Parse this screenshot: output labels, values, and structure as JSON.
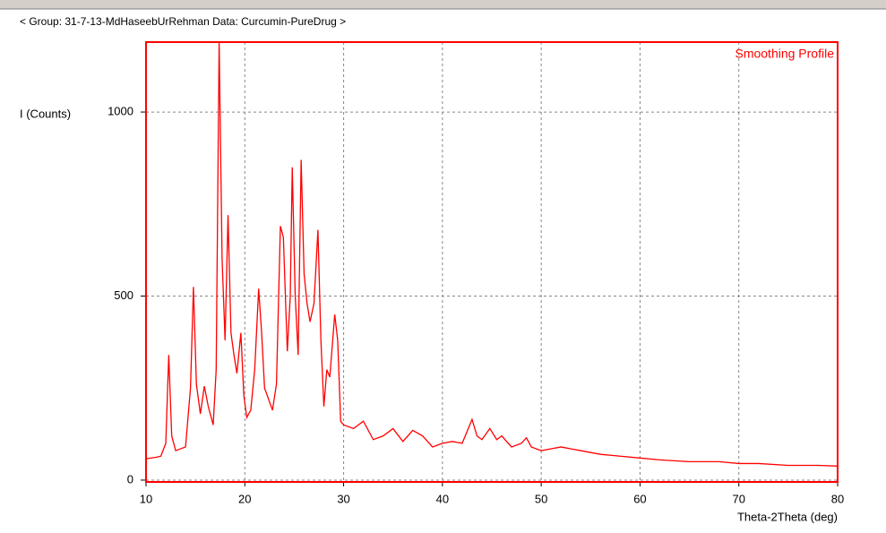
{
  "header": "< Group: 31-7-13-MdHaseebUrRehman   Data: Curcumin-PureDrug >",
  "chart_data": {
    "type": "line",
    "xlabel": "Theta-2Theta (deg)",
    "ylabel": "I (Counts)",
    "series": [
      {
        "name": "Smoothing Profile",
        "color": "#ff0000",
        "x": [
          10,
          11,
          11.5,
          12.0,
          12.3,
          12.6,
          13,
          14,
          14.5,
          14.8,
          15.1,
          15.5,
          15.9,
          16.3,
          16.8,
          17.1,
          17.4,
          17.7,
          18.0,
          18.3,
          18.6,
          18.9,
          19.2,
          19.6,
          19.9,
          20.2,
          20.6,
          21.0,
          21.4,
          21.7,
          22.0,
          22.4,
          22.8,
          23.2,
          23.6,
          23.9,
          24.3,
          24.6,
          24.8,
          25.1,
          25.4,
          25.7,
          26.0,
          26.3,
          26.6,
          27.0,
          27.4,
          27.7,
          28.0,
          28.3,
          28.6,
          29.1,
          29.4,
          29.7,
          30,
          31,
          32,
          33,
          34,
          35,
          36,
          37,
          38,
          39,
          40,
          41,
          42,
          43,
          43.5,
          44,
          44.8,
          45.5,
          46,
          47,
          48,
          48.5,
          49,
          50,
          51,
          52,
          54,
          56,
          58,
          60,
          62,
          65,
          68,
          70,
          72,
          75,
          78,
          80
        ],
        "values": [
          58,
          62,
          65,
          100,
          340,
          120,
          80,
          90,
          250,
          525,
          260,
          180,
          255,
          200,
          150,
          300,
          1190,
          600,
          380,
          720,
          400,
          340,
          290,
          400,
          230,
          170,
          190,
          300,
          520,
          400,
          250,
          220,
          190,
          260,
          690,
          660,
          350,
          500,
          850,
          500,
          340,
          870,
          560,
          480,
          430,
          480,
          680,
          380,
          200,
          300,
          280,
          450,
          380,
          160,
          150,
          140,
          160,
          110,
          120,
          140,
          105,
          135,
          120,
          90,
          100,
          105,
          100,
          165,
          120,
          110,
          140,
          110,
          120,
          90,
          100,
          115,
          90,
          80,
          85,
          90,
          80,
          70,
          65,
          60,
          55,
          50,
          50,
          45,
          45,
          40,
          40,
          38
        ]
      }
    ],
    "xlim": [
      10,
      80
    ],
    "ylim": [
      -5,
      1190
    ],
    "xticks": [
      10,
      20,
      30,
      40,
      50,
      60,
      70,
      80
    ],
    "yticks": [
      0,
      500,
      1000
    ],
    "grid": true,
    "legend": "top-right"
  }
}
